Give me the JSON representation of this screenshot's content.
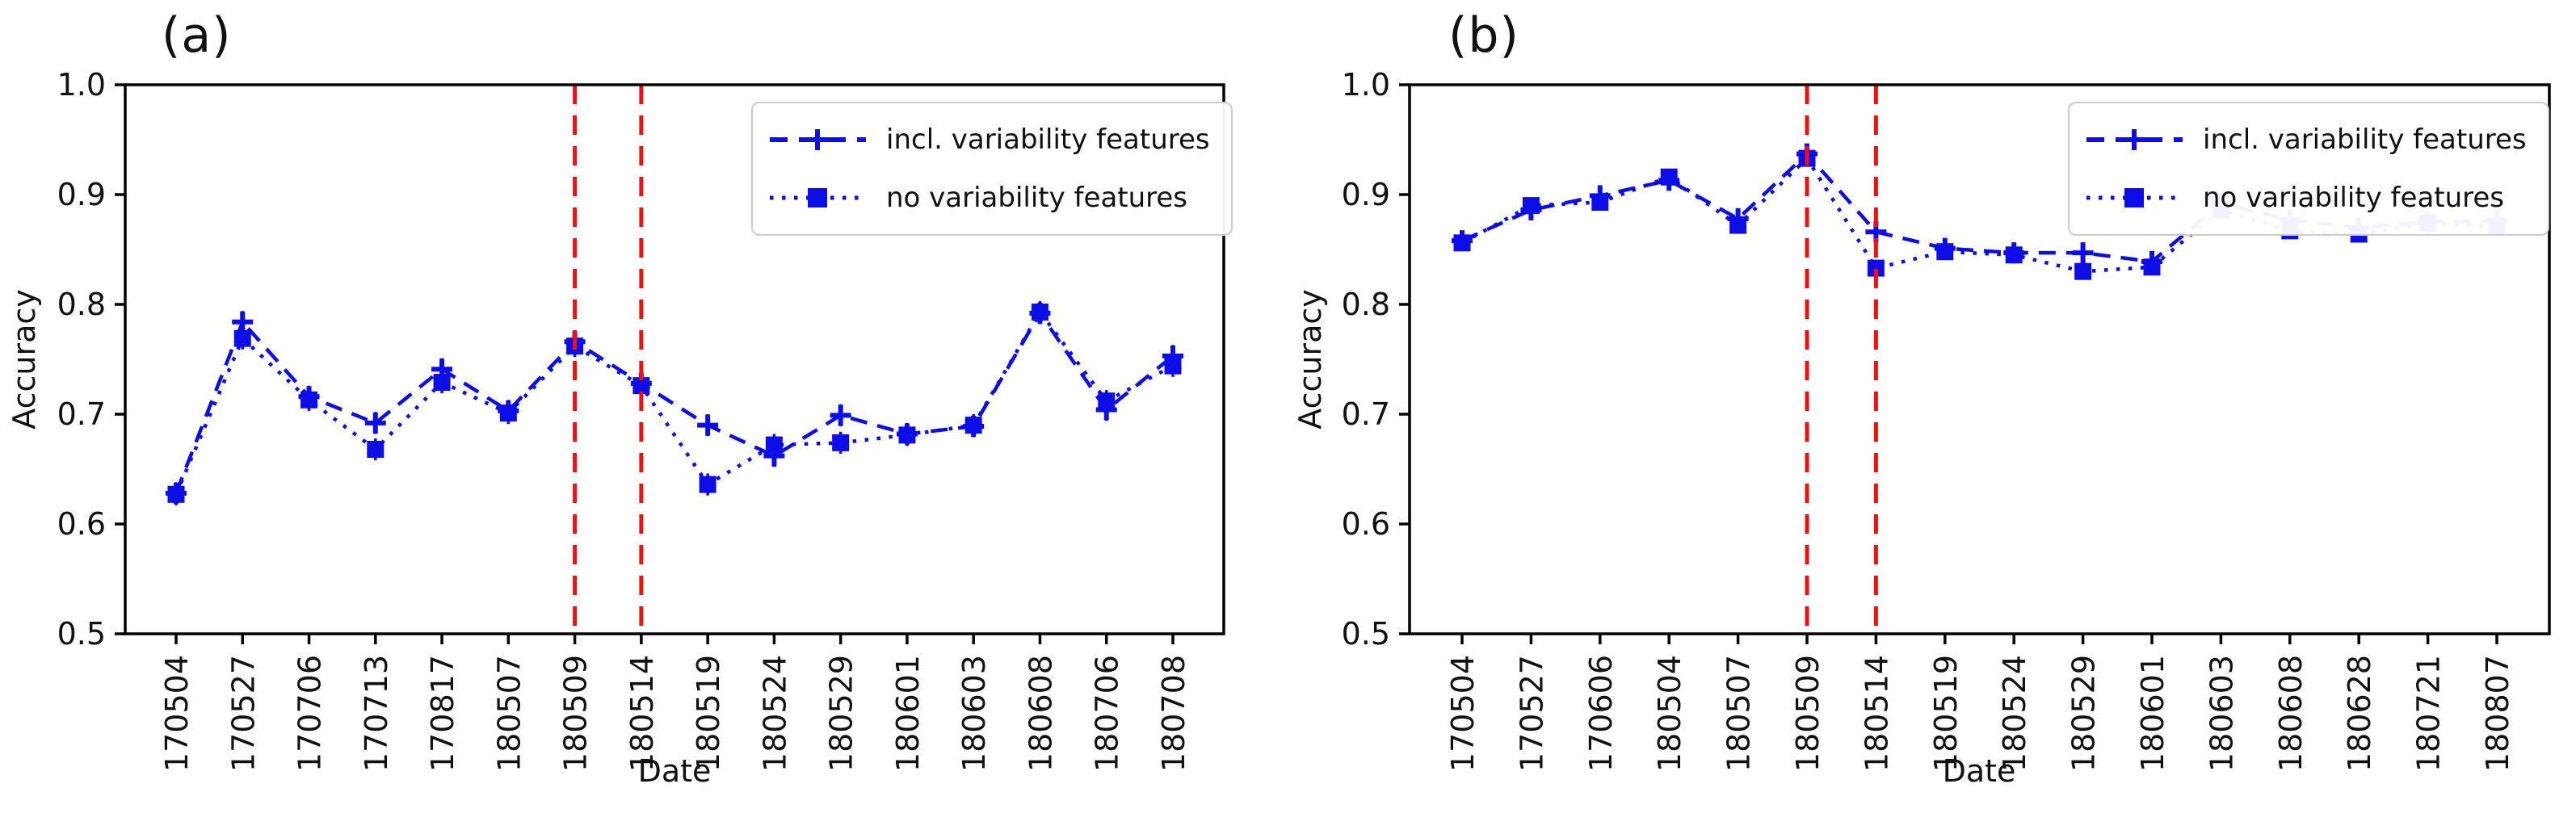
{
  "colors": {
    "series_blue": "#0d0de8",
    "vline_red": "#ee1111",
    "axis_black": "#000000",
    "text_black": "#111111",
    "legend_border": "#cccccc",
    "background": "#ffffff"
  },
  "chart_data": [
    {
      "type": "line",
      "panel_label": "(a)",
      "xlabel": "Date",
      "ylabel": "Accuracy",
      "ylim": [
        0.5,
        1.0
      ],
      "ytick_labels": [
        "1.0",
        "0.9",
        "0.8",
        "0.7",
        "0.6",
        "0.5"
      ],
      "grid": false,
      "legend_position": "upper right",
      "categories": [
        "170504",
        "170527",
        "170706",
        "170713",
        "170817",
        "180507",
        "180509",
        "180514",
        "180519",
        "180524",
        "180529",
        "180601",
        "180603",
        "180608",
        "180706",
        "180708"
      ],
      "series": [
        {
          "name": "incl. variability features",
          "line_style": "dashed",
          "marker": "plus",
          "values": [
            0.628,
            0.784,
            0.716,
            0.692,
            0.741,
            0.703,
            0.766,
            0.728,
            0.69,
            0.662,
            0.699,
            0.682,
            0.689,
            0.792,
            0.704,
            0.753
          ]
        },
        {
          "name": "no variability features",
          "line_style": "dotted",
          "marker": "square",
          "values": [
            0.627,
            0.769,
            0.713,
            0.668,
            0.729,
            0.701,
            0.762,
            0.726,
            0.636,
            0.672,
            0.674,
            0.681,
            0.69,
            0.793,
            0.712,
            0.744
          ]
        }
      ],
      "error_bar_hint": 0.01,
      "vlines": [
        {
          "category": "180509",
          "style": "dashed"
        },
        {
          "category": "180514",
          "style": "dashed"
        }
      ]
    },
    {
      "type": "line",
      "panel_label": "(b)",
      "xlabel": "Date",
      "ylabel": "Accuracy",
      "ylim": [
        0.5,
        1.0
      ],
      "ytick_labels": [
        "1.0",
        "0.9",
        "0.8",
        "0.7",
        "0.6",
        "0.5"
      ],
      "grid": false,
      "legend_position": "upper right",
      "categories": [
        "170504",
        "170527",
        "170606",
        "180504",
        "180507",
        "180509",
        "180514",
        "180519",
        "180524",
        "180529",
        "180601",
        "180603",
        "180608",
        "180628",
        "180721",
        "180807"
      ],
      "series": [
        {
          "name": "incl. variability features",
          "line_style": "dashed",
          "marker": "plus",
          "values": [
            0.858,
            0.886,
            0.899,
            0.913,
            0.878,
            0.937,
            0.866,
            0.851,
            0.847,
            0.847,
            0.839,
            0.892,
            0.877,
            0.87,
            0.875,
            0.876
          ]
        },
        {
          "name": "no variability features",
          "line_style": "dotted",
          "marker": "square",
          "values": [
            0.856,
            0.89,
            0.893,
            0.916,
            0.872,
            0.933,
            0.833,
            0.848,
            0.845,
            0.83,
            0.834,
            0.886,
            0.867,
            0.864,
            0.874,
            0.871
          ]
        }
      ],
      "error_bar_hint": 0.007,
      "vlines": [
        {
          "category": "180509",
          "style": "dashed"
        },
        {
          "category": "180514",
          "style": "dashed"
        }
      ]
    }
  ]
}
